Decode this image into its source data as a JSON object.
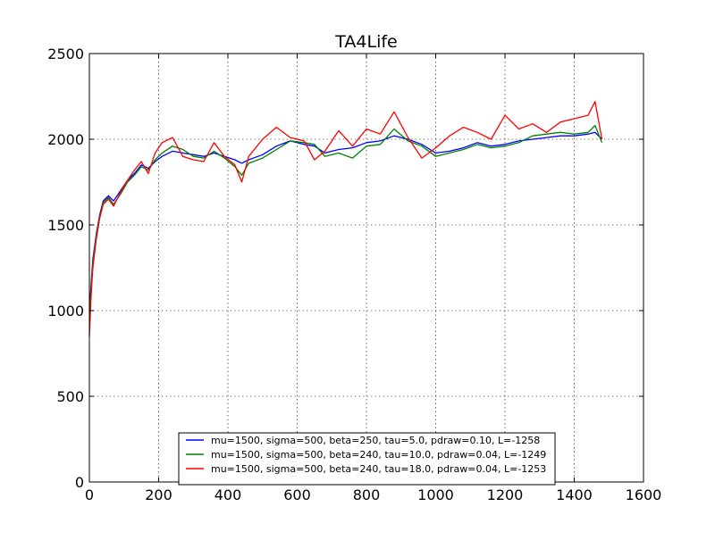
{
  "chart_data": {
    "type": "line",
    "title": "TA4Life",
    "xlabel": "",
    "ylabel": "",
    "xlim": [
      0,
      1600
    ],
    "ylim": [
      0,
      2500
    ],
    "x_ticks": [
      0,
      200,
      400,
      600,
      800,
      1000,
      1200,
      1400,
      1600
    ],
    "y_ticks": [
      0,
      500,
      1000,
      1500,
      2000,
      2500
    ],
    "grid": true,
    "legend_position": "lower-center",
    "series": [
      {
        "name": "mu=1500, sigma=500, beta=250, tau=5.0, pdraw=0.10, L=-1258",
        "color": "#0000ff",
        "x": [
          0,
          5,
          10,
          20,
          30,
          40,
          55,
          70,
          90,
          110,
          130,
          150,
          170,
          190,
          210,
          240,
          270,
          300,
          330,
          360,
          390,
          420,
          440,
          460,
          500,
          540,
          580,
          620,
          650,
          680,
          720,
          760,
          800,
          840,
          880,
          920,
          960,
          1000,
          1040,
          1080,
          1120,
          1160,
          1200,
          1240,
          1280,
          1320,
          1360,
          1400,
          1440,
          1460,
          1480
        ],
        "y": [
          1000,
          1150,
          1300,
          1450,
          1560,
          1640,
          1670,
          1640,
          1700,
          1760,
          1800,
          1850,
          1830,
          1870,
          1900,
          1930,
          1920,
          1910,
          1900,
          1920,
          1900,
          1880,
          1860,
          1880,
          1910,
          1960,
          1990,
          1970,
          1960,
          1920,
          1940,
          1950,
          1980,
          1990,
          2020,
          2000,
          1970,
          1920,
          1930,
          1950,
          1980,
          1960,
          1970,
          1990,
          2000,
          2010,
          2020,
          2020,
          2030,
          2040,
          2000
        ]
      },
      {
        "name": "mu=1500, sigma=500, beta=240, tau=10.0, pdraw=0.04, L=-1249",
        "color": "#008000",
        "x": [
          0,
          5,
          10,
          20,
          30,
          40,
          55,
          70,
          90,
          110,
          130,
          150,
          170,
          190,
          210,
          240,
          270,
          300,
          330,
          360,
          390,
          420,
          440,
          460,
          500,
          540,
          580,
          620,
          650,
          680,
          720,
          760,
          800,
          840,
          880,
          920,
          960,
          1000,
          1040,
          1080,
          1120,
          1160,
          1200,
          1240,
          1280,
          1320,
          1360,
          1400,
          1440,
          1460,
          1480
        ],
        "y": [
          950,
          1120,
          1280,
          1440,
          1550,
          1630,
          1660,
          1620,
          1680,
          1750,
          1790,
          1840,
          1820,
          1880,
          1920,
          1960,
          1940,
          1900,
          1890,
          1930,
          1890,
          1840,
          1790,
          1860,
          1890,
          1940,
          1990,
          1980,
          1970,
          1900,
          1920,
          1890,
          1960,
          1970,
          2060,
          1990,
          1960,
          1900,
          1920,
          1940,
          1970,
          1950,
          1960,
          1980,
          2020,
          2030,
          2040,
          2030,
          2040,
          2080,
          1980
        ]
      },
      {
        "name": "mu=1500, sigma=500, beta=240, tau=18.0, pdraw=0.04, L=-1253",
        "color": "#ff0000",
        "x": [
          0,
          5,
          10,
          20,
          30,
          40,
          55,
          70,
          90,
          110,
          130,
          150,
          170,
          190,
          210,
          240,
          270,
          300,
          330,
          360,
          390,
          420,
          440,
          460,
          500,
          540,
          580,
          620,
          650,
          680,
          720,
          760,
          800,
          840,
          880,
          920,
          960,
          1000,
          1040,
          1080,
          1120,
          1160,
          1200,
          1240,
          1280,
          1320,
          1360,
          1400,
          1440,
          1460,
          1480
        ],
        "y": [
          850,
          1080,
          1250,
          1420,
          1540,
          1620,
          1650,
          1610,
          1690,
          1760,
          1820,
          1870,
          1800,
          1920,
          1980,
          2010,
          1900,
          1880,
          1870,
          1980,
          1900,
          1850,
          1750,
          1900,
          2000,
          2070,
          2010,
          1990,
          1880,
          1930,
          2050,
          1960,
          2060,
          2030,
          2160,
          2010,
          1890,
          1950,
          2020,
          2070,
          2040,
          2000,
          2140,
          2060,
          2090,
          2040,
          2100,
          2120,
          2140,
          2220,
          2000
        ]
      }
    ]
  }
}
